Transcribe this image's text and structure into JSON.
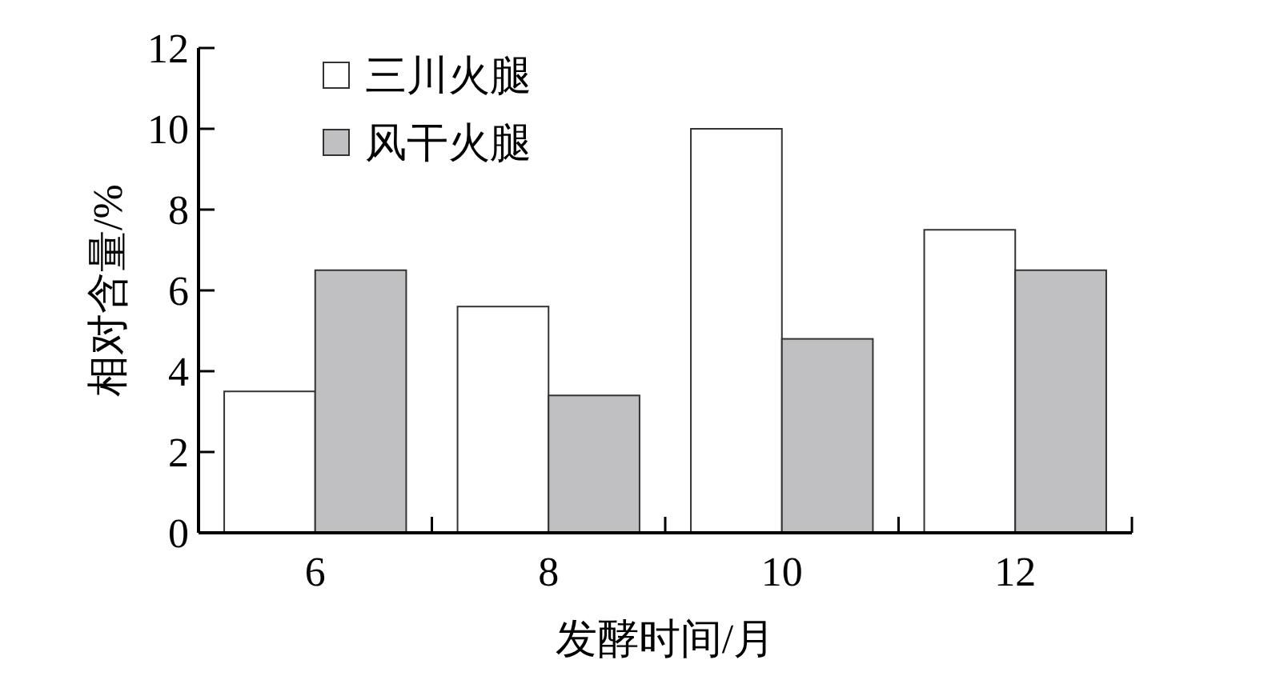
{
  "chart_data": {
    "type": "bar",
    "xlabel": "发酵时间/月",
    "ylabel": "相对含量/%",
    "categories": [
      "6",
      "8",
      "10",
      "12"
    ],
    "series": [
      {
        "name": "三川火腿",
        "color": "#ffffff",
        "values": [
          3.5,
          5.6,
          10.0,
          7.5
        ]
      },
      {
        "name": "风干火腿",
        "color": "#c0c0c2",
        "values": [
          6.5,
          3.4,
          4.8,
          6.5
        ]
      }
    ],
    "ylim": [
      0,
      12
    ],
    "yticks": [
      0,
      2,
      4,
      6,
      8,
      10,
      12
    ],
    "legend": "top left",
    "grid": false
  }
}
